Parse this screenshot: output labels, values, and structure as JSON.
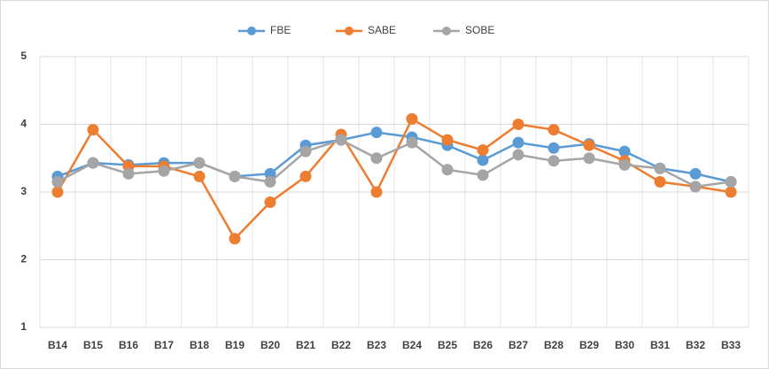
{
  "chart_data": {
    "type": "line",
    "categories": [
      "B14",
      "B15",
      "B16",
      "B17",
      "B18",
      "B19",
      "B20",
      "B21",
      "B22",
      "B23",
      "B24",
      "B25",
      "B26",
      "B27",
      "B28",
      "B29",
      "B30",
      "B31",
      "B32",
      "B33"
    ],
    "series": [
      {
        "name": "FBE",
        "color": "#5b9bd5",
        "values": [
          3.23,
          3.43,
          3.4,
          3.43,
          3.43,
          3.23,
          3.27,
          3.69,
          3.77,
          3.88,
          3.81,
          3.69,
          3.47,
          3.73,
          3.65,
          3.71,
          3.6,
          3.35,
          3.27,
          3.15
        ]
      },
      {
        "name": "SABE",
        "color": "#ed7d31",
        "values": [
          3.0,
          3.92,
          3.38,
          3.38,
          3.23,
          2.31,
          2.85,
          3.23,
          3.85,
          3.0,
          4.08,
          3.77,
          3.62,
          4.0,
          3.92,
          3.69,
          3.46,
          3.15,
          3.08,
          3.0
        ]
      },
      {
        "name": "SOBE",
        "color": "#a5a5a5",
        "values": [
          3.15,
          3.43,
          3.27,
          3.31,
          3.43,
          3.23,
          3.15,
          3.6,
          3.77,
          3.5,
          3.73,
          3.33,
          3.25,
          3.55,
          3.46,
          3.5,
          3.4,
          3.35,
          3.08,
          3.15
        ]
      }
    ],
    "ylim": [
      1,
      5
    ],
    "yticks": [
      1,
      2,
      3,
      4,
      5
    ],
    "grid": true,
    "legend": "top"
  }
}
